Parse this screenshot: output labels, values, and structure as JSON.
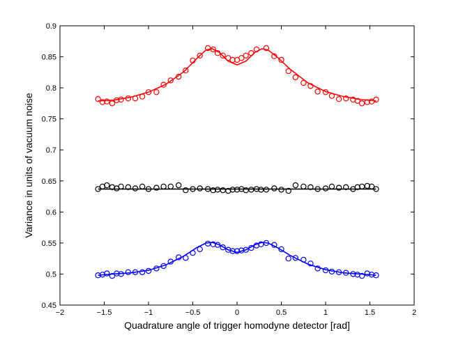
{
  "chart_data": {
    "type": "scatter",
    "title": "",
    "xlabel": "Quadrature angle of trigger homodyne detector [rad]",
    "ylabel": "Variance in units of vacuum noise",
    "xlim": [
      -2,
      2
    ],
    "ylim": [
      0.45,
      0.9
    ],
    "xticks": [
      -2,
      -1.5,
      -1,
      -0.5,
      0,
      0.5,
      1,
      1.5,
      2
    ],
    "xtick_labels": [
      "−2",
      "−1.5",
      "−1",
      "−0.5",
      "0",
      "0.5",
      "1",
      "1.5",
      "2"
    ],
    "yticks": [
      0.45,
      0.5,
      0.55,
      0.6,
      0.65,
      0.7,
      0.75,
      0.8,
      0.85,
      0.9
    ],
    "ytick_labels": [
      "0.45",
      "0.5",
      "0.55",
      "0.6",
      "0.65",
      "0.7",
      "0.75",
      "0.8",
      "0.85",
      "0.9"
    ],
    "grid": false,
    "legend": "none",
    "series": [
      {
        "color": "#ff0000",
        "marker": "open-circle",
        "points": [
          [
            -1.57,
            0.782
          ],
          [
            -1.52,
            0.777
          ],
          [
            -1.47,
            0.778
          ],
          [
            -1.41,
            0.775
          ],
          [
            -1.36,
            0.78
          ],
          [
            -1.31,
            0.781
          ],
          [
            -1.23,
            0.783
          ],
          [
            -1.15,
            0.783
          ],
          [
            -1.07,
            0.786
          ],
          [
            -1.0,
            0.793
          ],
          [
            -0.91,
            0.793
          ],
          [
            -0.83,
            0.805
          ],
          [
            -0.75,
            0.812
          ],
          [
            -0.66,
            0.818
          ],
          [
            -0.58,
            0.828
          ],
          [
            -0.5,
            0.844
          ],
          [
            -0.42,
            0.852
          ],
          [
            -0.33,
            0.864
          ],
          [
            -0.27,
            0.862
          ],
          [
            -0.22,
            0.856
          ],
          [
            -0.16,
            0.852
          ],
          [
            -0.1,
            0.848
          ],
          [
            -0.05,
            0.845
          ],
          [
            0.0,
            0.845
          ],
          [
            0.05,
            0.848
          ],
          [
            0.1,
            0.852
          ],
          [
            0.16,
            0.856
          ],
          [
            0.22,
            0.862
          ],
          [
            0.33,
            0.864
          ],
          [
            0.42,
            0.851
          ],
          [
            0.5,
            0.845
          ],
          [
            0.58,
            0.827
          ],
          [
            0.66,
            0.817
          ],
          [
            0.75,
            0.808
          ],
          [
            0.83,
            0.803
          ],
          [
            0.91,
            0.794
          ],
          [
            1.0,
            0.793
          ],
          [
            1.07,
            0.787
          ],
          [
            1.15,
            0.782
          ],
          [
            1.23,
            0.783
          ],
          [
            1.31,
            0.781
          ],
          [
            1.36,
            0.779
          ],
          [
            1.41,
            0.775
          ],
          [
            1.47,
            0.777
          ],
          [
            1.52,
            0.778
          ],
          [
            1.57,
            0.781
          ]
        ],
        "fit": [
          [
            -1.57,
            0.779
          ],
          [
            -1.4,
            0.78
          ],
          [
            -1.2,
            0.785
          ],
          [
            -1.0,
            0.793
          ],
          [
            -0.8,
            0.806
          ],
          [
            -0.6,
            0.826
          ],
          [
            -0.45,
            0.848
          ],
          [
            -0.35,
            0.861
          ],
          [
            -0.28,
            0.863
          ],
          [
            -0.2,
            0.857
          ],
          [
            -0.1,
            0.843
          ],
          [
            0.0,
            0.837
          ],
          [
            0.1,
            0.843
          ],
          [
            0.2,
            0.857
          ],
          [
            0.28,
            0.863
          ],
          [
            0.35,
            0.861
          ],
          [
            0.45,
            0.85
          ],
          [
            0.6,
            0.83
          ],
          [
            0.8,
            0.808
          ],
          [
            1.0,
            0.794
          ],
          [
            1.2,
            0.786
          ],
          [
            1.4,
            0.781
          ],
          [
            1.57,
            0.779
          ]
        ]
      },
      {
        "color": "#000000",
        "marker": "open-circle",
        "points": [
          [
            -1.57,
            0.637
          ],
          [
            -1.52,
            0.641
          ],
          [
            -1.47,
            0.643
          ],
          [
            -1.41,
            0.64
          ],
          [
            -1.36,
            0.638
          ],
          [
            -1.31,
            0.641
          ],
          [
            -1.23,
            0.64
          ],
          [
            -1.15,
            0.638
          ],
          [
            -1.07,
            0.641
          ],
          [
            -1.0,
            0.637
          ],
          [
            -0.91,
            0.639
          ],
          [
            -0.83,
            0.641
          ],
          [
            -0.75,
            0.641
          ],
          [
            -0.66,
            0.643
          ],
          [
            -0.58,
            0.635
          ],
          [
            -0.5,
            0.637
          ],
          [
            -0.42,
            0.638
          ],
          [
            -0.33,
            0.637
          ],
          [
            -0.27,
            0.635
          ],
          [
            -0.22,
            0.636
          ],
          [
            -0.16,
            0.635
          ],
          [
            -0.1,
            0.634
          ],
          [
            -0.05,
            0.636
          ],
          [
            0.0,
            0.636
          ],
          [
            0.05,
            0.637
          ],
          [
            0.1,
            0.635
          ],
          [
            0.16,
            0.636
          ],
          [
            0.22,
            0.637
          ],
          [
            0.27,
            0.636
          ],
          [
            0.33,
            0.636
          ],
          [
            0.42,
            0.638
          ],
          [
            0.5,
            0.636
          ],
          [
            0.58,
            0.634
          ],
          [
            0.66,
            0.643
          ],
          [
            0.75,
            0.641
          ],
          [
            0.83,
            0.64
          ],
          [
            0.91,
            0.637
          ],
          [
            1.0,
            0.638
          ],
          [
            1.07,
            0.641
          ],
          [
            1.15,
            0.639
          ],
          [
            1.23,
            0.64
          ],
          [
            1.31,
            0.637
          ],
          [
            1.36,
            0.64
          ],
          [
            1.41,
            0.641
          ],
          [
            1.47,
            0.642
          ],
          [
            1.52,
            0.641
          ],
          [
            1.57,
            0.637
          ]
        ],
        "fit": [
          [
            -1.57,
            0.637
          ],
          [
            1.57,
            0.637
          ]
        ]
      },
      {
        "color": "#0000ff",
        "marker": "open-circle",
        "points": [
          [
            -1.57,
            0.498
          ],
          [
            -1.52,
            0.499
          ],
          [
            -1.47,
            0.501
          ],
          [
            -1.41,
            0.497
          ],
          [
            -1.36,
            0.501
          ],
          [
            -1.31,
            0.5
          ],
          [
            -1.23,
            0.503
          ],
          [
            -1.15,
            0.503
          ],
          [
            -1.07,
            0.503
          ],
          [
            -1.0,
            0.505
          ],
          [
            -0.91,
            0.509
          ],
          [
            -0.83,
            0.513
          ],
          [
            -0.75,
            0.52
          ],
          [
            -0.66,
            0.527
          ],
          [
            -0.58,
            0.526
          ],
          [
            -0.5,
            0.534
          ],
          [
            -0.42,
            0.54
          ],
          [
            -0.33,
            0.549
          ],
          [
            -0.27,
            0.548
          ],
          [
            -0.22,
            0.547
          ],
          [
            -0.16,
            0.543
          ],
          [
            -0.1,
            0.539
          ],
          [
            -0.05,
            0.537
          ],
          [
            0.0,
            0.537
          ],
          [
            0.05,
            0.538
          ],
          [
            0.1,
            0.539
          ],
          [
            0.16,
            0.542
          ],
          [
            0.22,
            0.546
          ],
          [
            0.27,
            0.548
          ],
          [
            0.33,
            0.55
          ],
          [
            0.42,
            0.547
          ],
          [
            0.5,
            0.54
          ],
          [
            0.58,
            0.525
          ],
          [
            0.66,
            0.526
          ],
          [
            0.75,
            0.523
          ],
          [
            0.83,
            0.517
          ],
          [
            0.91,
            0.509
          ],
          [
            1.0,
            0.506
          ],
          [
            1.07,
            0.504
          ],
          [
            1.15,
            0.503
          ],
          [
            1.23,
            0.502
          ],
          [
            1.31,
            0.5
          ],
          [
            1.36,
            0.499
          ],
          [
            1.41,
            0.497
          ],
          [
            1.47,
            0.501
          ],
          [
            1.52,
            0.499
          ],
          [
            1.57,
            0.498
          ]
        ],
        "fit": [
          [
            -1.57,
            0.498
          ],
          [
            -1.4,
            0.5
          ],
          [
            -1.2,
            0.502
          ],
          [
            -1.0,
            0.506
          ],
          [
            -0.8,
            0.515
          ],
          [
            -0.6,
            0.529
          ],
          [
            -0.45,
            0.543
          ],
          [
            -0.35,
            0.55
          ],
          [
            -0.28,
            0.551
          ],
          [
            -0.2,
            0.547
          ],
          [
            -0.1,
            0.539
          ],
          [
            0.0,
            0.535
          ],
          [
            0.1,
            0.539
          ],
          [
            0.2,
            0.547
          ],
          [
            0.28,
            0.551
          ],
          [
            0.35,
            0.55
          ],
          [
            0.45,
            0.543
          ],
          [
            0.6,
            0.53
          ],
          [
            0.8,
            0.516
          ],
          [
            1.0,
            0.507
          ],
          [
            1.2,
            0.502
          ],
          [
            1.4,
            0.5
          ],
          [
            1.57,
            0.498
          ]
        ]
      }
    ]
  }
}
